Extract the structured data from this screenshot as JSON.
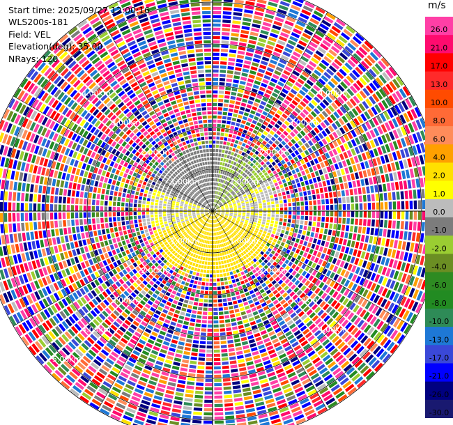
{
  "header": {
    "start_time": "Start time: 2025/09/27 12:00:16",
    "instrument": "WLS200s-181",
    "field": "Field: VEL",
    "elevation": "Elevation(deg): 35.00",
    "nrays": "NRays: 120"
  },
  "colorbar": {
    "unit": "m/s",
    "ticks": [
      "26.0",
      "21.0",
      "17.0",
      "13.0",
      "10.0",
      "8.0",
      "6.0",
      "4.0",
      "2.0",
      "1.0",
      "0.0",
      "-1.0",
      "-2.0",
      "-4.0",
      "-6.0",
      "-8.0",
      "-10.0",
      "-13.0",
      "-17.0",
      "-21.0",
      "-26.0",
      "-30.0"
    ],
    "colors": [
      "#ff3fa6",
      "#ff0b6e",
      "#ff0000",
      "#ff2a2a",
      "#ff4b00",
      "#ff6a36",
      "#ff8c5a",
      "#ffa000",
      "#ffe000",
      "#ffff00",
      "#bcbcbc",
      "#7c7c7c",
      "#9acd32",
      "#6b8e23",
      "#2e8b22",
      "#228b22",
      "#2e8b57",
      "#1e78d6",
      "#3a48d8",
      "#0000ff",
      "#000080",
      "#191970"
    ]
  },
  "chart_data": {
    "type": "heatmap",
    "subtype": "radar PPI (plan position indicator)",
    "field": "VEL",
    "unit": "m/s",
    "n_rays": 120,
    "elevation_deg": 35.0,
    "range_rings_km": [
      1.0,
      2.0,
      3.0,
      4.0,
      5.0
    ],
    "ring_labels": [
      "1.00km",
      "2.00km",
      "3.00km",
      "4.00km",
      "5.00km"
    ],
    "max_range_km": 5.5,
    "value_range": [
      -30.0,
      26.0
    ],
    "coherent_region": {
      "max_range_km": 1.6,
      "sectors": [
        {
          "from_deg": 290,
          "to_deg": 360,
          "value": -1.5
        },
        {
          "from_deg": 0,
          "to_deg": 10,
          "value": -1.5
        },
        {
          "from_deg": 10,
          "to_deg": 60,
          "value": -2.0
        },
        {
          "from_deg": 60,
          "to_deg": 110,
          "value": 0.0
        },
        {
          "from_deg": 110,
          "to_deg": 250,
          "value": 1.5
        },
        {
          "from_deg": 250,
          "to_deg": 290,
          "value": 0.0
        }
      ]
    },
    "beyond_coherent": "noise (random values across full scale)"
  }
}
